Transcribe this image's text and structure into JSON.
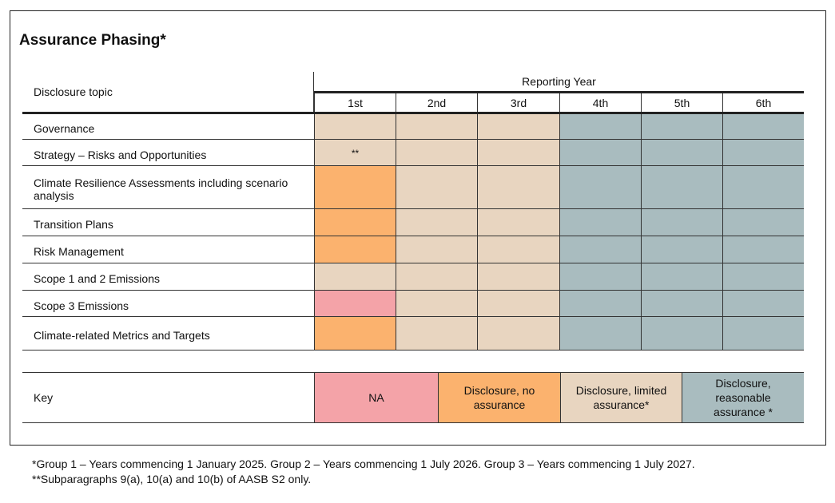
{
  "title": "Assurance Phasing*",
  "table": {
    "topic_header": "Disclosure topic",
    "group_header": "Reporting Year",
    "years": [
      "1st",
      "2nd",
      "3rd",
      "4th",
      "5th",
      "6th"
    ],
    "rows": [
      {
        "label": "Governance",
        "colors": [
          "#e8d5c0",
          "#e8d5c0",
          "#e8d5c0",
          "#a9bcbf",
          "#a9bcbf",
          "#a9bcbf"
        ]
      },
      {
        "label": "Strategy – Risks and Opportunities",
        "note": "**",
        "colors": [
          "#e8d5c0",
          "#e8d5c0",
          "#e8d5c0",
          "#a9bcbf",
          "#a9bcbf",
          "#a9bcbf"
        ]
      },
      {
        "label": "Climate Resilience Assessments including scenario analysis",
        "colors": [
          "#fbb26e",
          "#e8d5c0",
          "#e8d5c0",
          "#a9bcbf",
          "#a9bcbf",
          "#a9bcbf"
        ]
      },
      {
        "label": "Transition Plans",
        "colors": [
          "#fbb26e",
          "#e8d5c0",
          "#e8d5c0",
          "#a9bcbf",
          "#a9bcbf",
          "#a9bcbf"
        ]
      },
      {
        "label": "Risk Management",
        "colors": [
          "#fbb26e",
          "#e8d5c0",
          "#e8d5c0",
          "#a9bcbf",
          "#a9bcbf",
          "#a9bcbf"
        ]
      },
      {
        "label": "Scope 1 and 2 Emissions",
        "colors": [
          "#e8d5c0",
          "#e8d5c0",
          "#e8d5c0",
          "#a9bcbf",
          "#a9bcbf",
          "#a9bcbf"
        ]
      },
      {
        "label": "Scope 3 Emissions",
        "colors": [
          "#f4a3a8",
          "#e8d5c0",
          "#e8d5c0",
          "#a9bcbf",
          "#a9bcbf",
          "#a9bcbf"
        ]
      },
      {
        "label": "Climate-related Metrics and Targets",
        "colors": [
          "#fbb26e",
          "#e8d5c0",
          "#e8d5c0",
          "#a9bcbf",
          "#a9bcbf",
          "#a9bcbf"
        ]
      }
    ],
    "key_label": "Key",
    "key": [
      {
        "label": "NA",
        "color": "#f4a3a8"
      },
      {
        "label": "Disclosure, no assurance",
        "color": "#fbb26e"
      },
      {
        "label": "Disclosure, limited assurance*",
        "color": "#e8d5c0"
      },
      {
        "label": "Disclosure, reasonable assurance *",
        "color": "#a9bcbf"
      }
    ]
  },
  "footnotes": [
    "*Group 1 – Years commencing 1 January 2025. Group 2 – Years commencing 1 July 2026. Group 3 – Years commencing 1 July 2027.",
    "**Subparagraphs 9(a), 10(a) and 10(b) of AASB S2 only."
  ]
}
